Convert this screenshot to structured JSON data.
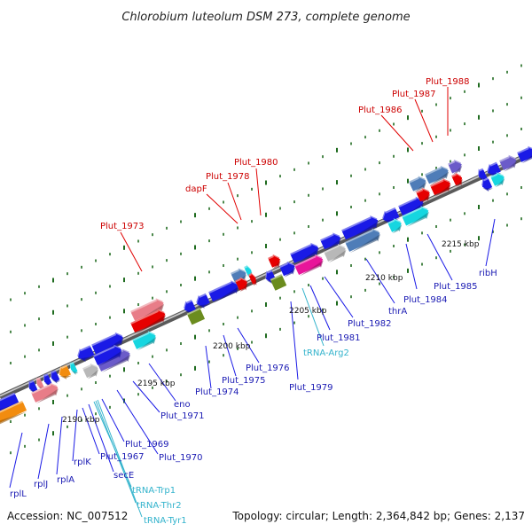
{
  "title": "Chlorobium luteolum DSM 273, complete genome",
  "accession": "Accession: NC_007512",
  "topology": "Topology: circular; Length: 2,364,842 bp; Genes: 2,137",
  "colors": {
    "backbone": "#8c8c8c",
    "tick": "#1f6b1f",
    "gene_blue": "#1a1ae6",
    "gene_red": "#e60000",
    "gene_pink": "#e87d88",
    "gene_steel": "#4f7db8",
    "gene_cyan": "#16d6e0",
    "gene_magenta": "#e8159a",
    "gene_orange": "#f28c0f",
    "gene_purple": "#6b5bc9",
    "gene_olive": "#6b8c1e",
    "gene_grey": "#b8b8b8",
    "label_red": "#cc0000",
    "label_blue": "#1a1ab3",
    "label_cyan": "#33b3cc"
  },
  "scale_labels": [
    "2190 kbp",
    "2195 kbp",
    "2200 kbp",
    "2205 kbp",
    "2210 kbp",
    "2215 kbp"
  ],
  "labels_top": [
    "Plut_1973",
    "dapF",
    "Plut_1978",
    "Plut_1980",
    "Plut_1986",
    "Plut_1987",
    "Plut_1988"
  ],
  "labels_bottom": [
    "rplL",
    "rplJ",
    "rplA",
    "rplK",
    "Plut_1967",
    "secE",
    "tRNA-Trp1",
    "tRNA-Thr2",
    "tRNA-Tyr1",
    "Plut_1969",
    "Plut_1970",
    "Plut_1971",
    "eno",
    "Plut_1974",
    "Plut_1975",
    "Plut_1976",
    "Plut_1979",
    "tRNA-Arg2",
    "Plut_1981",
    "Plut_1982",
    "thrA",
    "Plut_1984",
    "Plut_1985",
    "ribH"
  ]
}
